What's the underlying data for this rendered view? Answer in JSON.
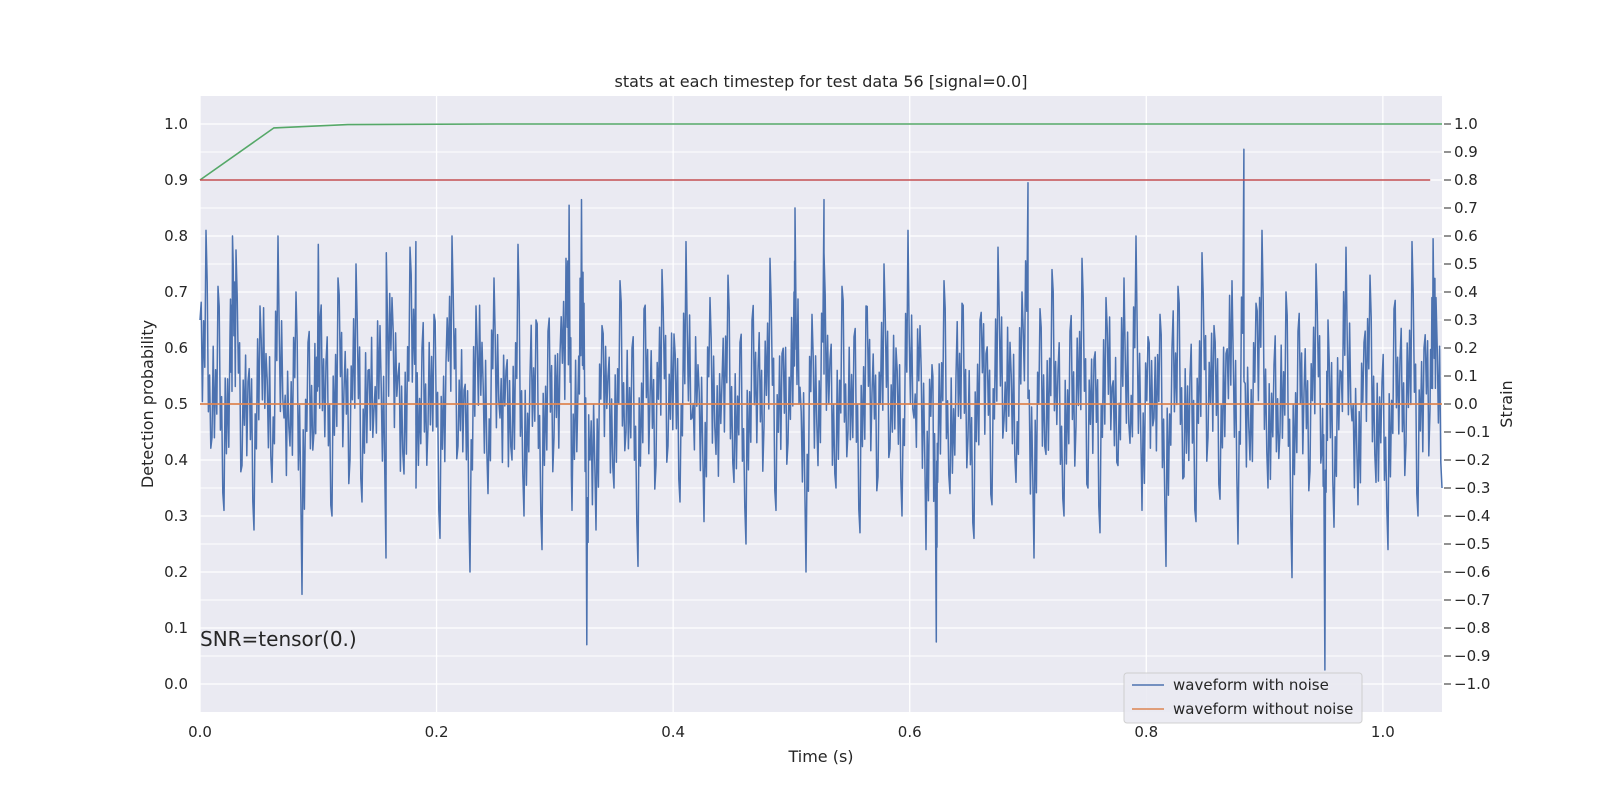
{
  "chart_data": {
    "type": "line",
    "title": "stats at each timestep for test data 56 [signal=0.0]",
    "xlabel": "Time (s)",
    "ylabel": "Detection probability",
    "y2label": "Strain",
    "xlim": [
      0.0,
      1.05
    ],
    "ylim": [
      -0.05,
      1.05
    ],
    "y2lim": [
      -1.1,
      1.1
    ],
    "x_ticks": [
      "0.0",
      "0.2",
      "0.4",
      "0.6",
      "0.8",
      "1.0"
    ],
    "x_tick_values": [
      0.0,
      0.2,
      0.4,
      0.6,
      0.8,
      1.0
    ],
    "y_ticks": [
      "0.0",
      "0.1",
      "0.2",
      "0.3",
      "0.4",
      "0.5",
      "0.6",
      "0.7",
      "0.8",
      "0.9",
      "1.0"
    ],
    "y_tick_values": [
      0.0,
      0.1,
      0.2,
      0.3,
      0.4,
      0.5,
      0.6,
      0.7,
      0.8,
      0.9,
      1.0
    ],
    "y2_ticks": [
      "−1.0",
      "−0.9",
      "−0.8",
      "−0.7",
      "−0.6",
      "−0.5",
      "−0.4",
      "−0.3",
      "−0.2",
      "−0.1",
      "0.0",
      "0.1",
      "0.2",
      "0.3",
      "0.4",
      "0.5",
      "0.6",
      "0.7",
      "0.8",
      "0.9",
      "1.0"
    ],
    "y2_tick_values": [
      -1.0,
      -0.9,
      -0.8,
      -0.7,
      -0.6,
      -0.5,
      -0.4,
      -0.3,
      -0.2,
      -0.1,
      0.0,
      0.1,
      0.2,
      0.3,
      0.4,
      0.5,
      0.6,
      0.7,
      0.8,
      0.9,
      1.0
    ],
    "grid": true,
    "legend_placement": "lower-right",
    "annotation": "SNR=tensor(0.)",
    "series": [
      {
        "name": "waveform with noise",
        "axis": "right",
        "color": "#4c72b0",
        "x_start": 0.0,
        "x_end": 1.05,
        "y": [
          0.3,
          0.62,
          -0.12,
          0.42,
          -0.38,
          0.25,
          0.55,
          -0.22,
          0.08,
          -0.45,
          0.35,
          0.18,
          -0.28,
          0.6,
          -0.05,
          -0.15,
          0.4,
          -0.68,
          0.22,
          -0.1,
          0.3,
          0.15,
          -0.4,
          0.45,
          0.05,
          -0.2,
          0.5,
          -0.35,
          0.12,
          -0.02,
          0.28,
          -0.55,
          0.38,
          0.1,
          -0.25,
          0.56,
          -0.3,
          0.2,
          -0.08,
          0.32,
          -0.48,
          0.15,
          0.6,
          -0.15,
          0.05,
          -0.6,
          0.35,
          0.22,
          -0.32,
          0.45,
          -0.05,
          0.12,
          -0.2,
          0.57,
          -0.4,
          0.1,
          0.3,
          -0.52,
          0.26,
          -0.12,
          0.18,
          0.52,
          -0.38,
          0.05,
          0.36,
          -0.2,
          -0.45,
          0.28,
          0.1,
          -0.3,
          0.44,
          -0.1,
          0.2,
          -0.58,
          0.34,
          0.02,
          -0.22,
          0.48,
          -0.15,
          0.25,
          -0.35,
          0.58,
          -0.05,
          0.14,
          -0.42,
          0.38,
          -0.18,
          0.08,
          0.46,
          -0.28,
          0.22,
          -0.5,
          0.3,
          0.12,
          -0.08,
          0.52,
          -0.38,
          0.18,
          -0.14,
          0.4,
          0.06,
          -0.6,
          0.32,
          -0.22,
          0.54,
          0.16,
          -0.3,
          0.42,
          -0.1,
          0.24,
          -0.46,
          0.35,
          0.04,
          -0.26,
          0.5,
          -0.16,
          0.2,
          -0.4,
          0.62,
          -0.05,
          0.28,
          -0.52,
          0.14,
          -0.2,
          0.44,
          -0.32,
          0.1,
          0.36,
          -0.12,
          -0.48,
          0.3,
          0.18,
          -0.36,
          0.56,
          -0.06,
          0.22,
          -0.28,
          0.4,
          0.02,
          -0.55,
          0.34,
          -0.18,
          0.48,
          0.12,
          -0.4,
          0.26,
          -0.08,
          0.52,
          -0.3,
          0.16,
          -0.46,
          0.38,
          0.06,
          -0.22,
          0.45,
          -0.14,
          0.6,
          -0.38,
          0.24,
          -0.05,
          0.32,
          -0.58,
          0.2,
          0.42,
          -0.26,
          0.1,
          -0.42,
          0.54,
          -0.12,
          0.28,
          -0.34,
          0.18,
          0.44,
          -0.5,
          0.08,
          -0.2,
          0.36,
          0.62,
          -0.3,
          0.14,
          -0.1,
          0.4,
          -0.62,
          0.26,
          0.04,
          -0.24,
          0.5,
          -0.16,
          0.3,
          -0.44,
          0.12,
          0.56,
          -0.06,
          -0.36,
          0.22,
          0.46,
          -0.28,
          0.08,
          -0.52,
          0.34,
          0.16,
          -0.14,
          0.58,
          -0.4,
          0.2,
          -0.02,
          0.38,
          -0.3
        ],
        "peaks": [
          {
            "x": 0.0275,
            "y": 0.6
          },
          {
            "x": 0.1,
            "y": 0.57
          },
          {
            "x": 0.1575,
            "y": 0.54
          },
          {
            "x": 0.1825,
            "y": 0.58
          },
          {
            "x": 0.312,
            "y": 0.71
          },
          {
            "x": 0.327,
            "y": -0.86
          },
          {
            "x": 0.3225,
            "y": 0.73
          },
          {
            "x": 0.5275,
            "y": 0.73
          },
          {
            "x": 0.503,
            "y": 0.7
          },
          {
            "x": 0.6225,
            "y": -0.85
          },
          {
            "x": 0.7,
            "y": 0.79
          },
          {
            "x": 0.8825,
            "y": 0.91
          },
          {
            "x": 0.951,
            "y": -0.95
          },
          {
            "x": 1.0425,
            "y": 0.59
          }
        ]
      },
      {
        "name": "waveform without noise",
        "axis": "right",
        "color": "#dd8452",
        "x": [
          0.0,
          1.05
        ],
        "y": [
          0.0,
          0.0
        ]
      },
      {
        "axis": "left",
        "color": "#55a868",
        "x": [
          0.0,
          0.0625,
          0.125,
          0.25,
          0.5,
          0.75,
          1.0,
          1.05
        ],
        "y": [
          0.9,
          0.993,
          0.999,
          1.0,
          1.0,
          1.0,
          1.0,
          1.0
        ]
      },
      {
        "axis": "left",
        "color": "#c44e52",
        "x": [
          0.0,
          1.04
        ],
        "y": [
          0.9,
          0.9
        ]
      }
    ]
  }
}
